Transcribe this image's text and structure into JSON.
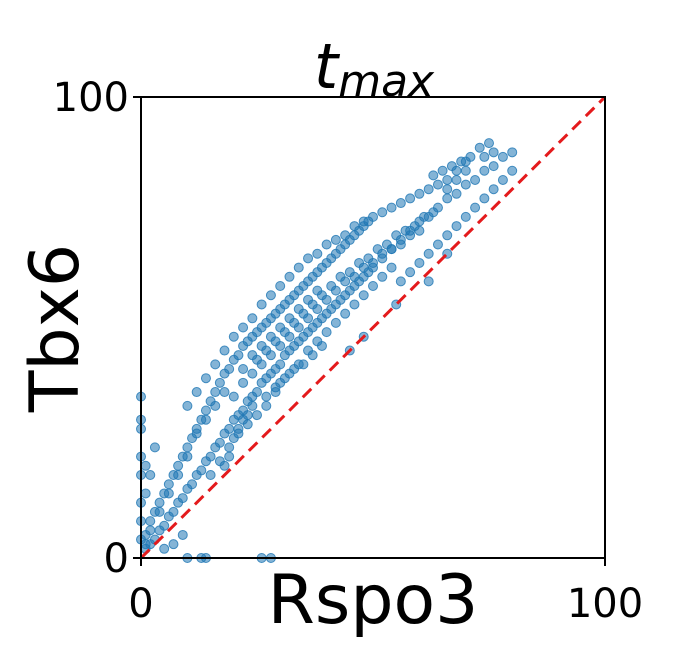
{
  "chart_data": {
    "type": "scatter",
    "title": {
      "main": "t",
      "subscript": "max"
    },
    "xlabel": "Rspo3",
    "ylabel": "Tbx6",
    "xlim": [
      0,
      100
    ],
    "ylim": [
      0,
      100
    ],
    "xticks": [
      "0",
      "100"
    ],
    "yticks": [
      "0",
      "100"
    ],
    "grid": false,
    "legend": "none",
    "point_color": "#1f77b4",
    "point_alpha": 0.55,
    "reference_line": {
      "style": "dashed",
      "color": "#e41a1c",
      "x": [
        0,
        100
      ],
      "y": [
        0,
        100
      ]
    },
    "series": [
      {
        "points": [
          [
            1,
            2
          ],
          [
            1,
            5
          ],
          [
            2,
            3
          ],
          [
            2,
            8
          ],
          [
            3,
            4
          ],
          [
            3,
            10
          ],
          [
            4,
            6
          ],
          [
            4,
            12
          ],
          [
            5,
            7
          ],
          [
            5,
            14
          ],
          [
            6,
            9
          ],
          [
            6,
            16
          ],
          [
            7,
            10
          ],
          [
            7,
            18
          ],
          [
            8,
            12
          ],
          [
            8,
            20
          ],
          [
            9,
            13
          ],
          [
            9,
            22
          ],
          [
            10,
            15
          ],
          [
            10,
            24
          ],
          [
            11,
            16
          ],
          [
            11,
            26
          ],
          [
            12,
            18
          ],
          [
            12,
            28
          ],
          [
            13,
            19
          ],
          [
            13,
            30
          ],
          [
            14,
            21
          ],
          [
            14,
            32
          ],
          [
            15,
            22
          ],
          [
            15,
            34
          ],
          [
            16,
            24
          ],
          [
            16,
            36
          ],
          [
            17,
            25
          ],
          [
            17,
            38
          ],
          [
            18,
            27
          ],
          [
            18,
            40
          ],
          [
            19,
            28
          ],
          [
            19,
            41
          ],
          [
            20,
            30
          ],
          [
            20,
            43
          ],
          [
            21,
            31
          ],
          [
            21,
            44
          ],
          [
            22,
            32
          ],
          [
            22,
            46
          ],
          [
            23,
            34
          ],
          [
            23,
            47
          ],
          [
            24,
            35
          ],
          [
            24,
            48
          ],
          [
            25,
            36
          ],
          [
            25,
            49
          ],
          [
            26,
            38
          ],
          [
            26,
            50
          ],
          [
            27,
            39
          ],
          [
            27,
            51
          ],
          [
            28,
            40
          ],
          [
            28,
            52
          ],
          [
            29,
            41
          ],
          [
            29,
            53
          ],
          [
            30,
            42
          ],
          [
            30,
            54
          ],
          [
            31,
            44
          ],
          [
            31,
            55
          ],
          [
            32,
            45
          ],
          [
            32,
            56
          ],
          [
            33,
            46
          ],
          [
            33,
            57
          ],
          [
            34,
            47
          ],
          [
            34,
            58
          ],
          [
            35,
            48
          ],
          [
            35,
            59
          ],
          [
            36,
            49
          ],
          [
            36,
            60
          ],
          [
            37,
            50
          ],
          [
            37,
            61
          ],
          [
            38,
            51
          ],
          [
            38,
            62
          ],
          [
            39,
            52
          ],
          [
            39,
            63
          ],
          [
            40,
            53
          ],
          [
            40,
            64
          ],
          [
            41,
            54
          ],
          [
            41,
            65
          ],
          [
            42,
            55
          ],
          [
            42,
            66
          ],
          [
            43,
            56
          ],
          [
            43,
            67
          ],
          [
            44,
            57
          ],
          [
            44,
            68
          ],
          [
            45,
            58
          ],
          [
            45,
            69
          ],
          [
            46,
            59
          ],
          [
            46,
            70
          ],
          [
            47,
            60
          ],
          [
            47,
            71
          ],
          [
            48,
            61
          ],
          [
            48,
            72
          ],
          [
            49,
            62
          ],
          [
            49,
            73
          ],
          [
            50,
            63
          ],
          [
            50,
            74
          ],
          [
            52,
            65
          ],
          [
            52,
            75
          ],
          [
            54,
            67
          ],
          [
            54,
            76
          ],
          [
            56,
            69
          ],
          [
            56,
            77
          ],
          [
            58,
            71
          ],
          [
            58,
            78
          ],
          [
            60,
            73
          ],
          [
            60,
            79
          ],
          [
            62,
            74
          ],
          [
            62,
            80
          ],
          [
            64,
            76
          ],
          [
            64,
            81
          ],
          [
            66,
            78
          ],
          [
            66,
            82
          ],
          [
            68,
            79
          ],
          [
            68,
            84
          ],
          [
            70,
            81
          ],
          [
            70,
            86
          ],
          [
            72,
            82
          ],
          [
            74,
            84
          ],
          [
            76,
            85
          ],
          [
            78,
            87
          ],
          [
            80,
            88
          ],
          [
            76,
            88
          ],
          [
            74,
            87
          ],
          [
            70,
            84
          ],
          [
            68,
            82
          ],
          [
            66,
            80
          ],
          [
            25,
            43
          ],
          [
            27,
            45
          ],
          [
            29,
            47
          ],
          [
            31,
            49
          ],
          [
            33,
            51
          ],
          [
            35,
            53
          ],
          [
            37,
            55
          ],
          [
            39,
            57
          ],
          [
            41,
            59
          ],
          [
            43,
            61
          ],
          [
            45,
            62
          ],
          [
            47,
            64
          ],
          [
            49,
            65
          ],
          [
            51,
            67
          ],
          [
            53,
            68
          ],
          [
            55,
            70
          ],
          [
            57,
            71
          ],
          [
            59,
            72
          ],
          [
            61,
            74
          ],
          [
            63,
            75
          ],
          [
            22,
            38
          ],
          [
            24,
            40
          ],
          [
            26,
            42
          ],
          [
            28,
            44
          ],
          [
            30,
            46
          ],
          [
            32,
            48
          ],
          [
            34,
            50
          ],
          [
            36,
            52
          ],
          [
            38,
            54
          ],
          [
            40,
            56
          ],
          [
            42,
            58
          ],
          [
            44,
            60
          ],
          [
            46,
            61
          ],
          [
            48,
            63
          ],
          [
            50,
            64
          ],
          [
            52,
            66
          ],
          [
            54,
            67
          ],
          [
            56,
            68
          ],
          [
            58,
            70
          ],
          [
            60,
            71
          ],
          [
            20,
            35
          ],
          [
            22,
            41
          ],
          [
            24,
            44
          ],
          [
            26,
            46
          ],
          [
            28,
            48
          ],
          [
            30,
            50
          ],
          [
            32,
            52
          ],
          [
            34,
            54
          ],
          [
            36,
            56
          ],
          [
            38,
            58
          ],
          [
            18,
            36
          ],
          [
            16,
            33
          ],
          [
            14,
            30
          ],
          [
            12,
            27
          ],
          [
            10,
            22
          ],
          [
            8,
            18
          ],
          [
            6,
            14
          ],
          [
            4,
            10
          ],
          [
            2,
            6
          ],
          [
            1,
            3
          ],
          [
            0,
            35
          ],
          [
            0,
            30
          ],
          [
            0,
            28
          ],
          [
            0,
            22
          ],
          [
            0,
            18
          ],
          [
            0,
            12
          ],
          [
            0,
            8
          ],
          [
            0,
            4
          ],
          [
            1,
            20
          ],
          [
            1,
            14
          ],
          [
            2,
            18
          ],
          [
            3,
            24
          ],
          [
            9,
            5
          ],
          [
            10,
            0
          ],
          [
            13,
            0
          ],
          [
            14,
            0
          ],
          [
            26,
            0
          ],
          [
            28,
            0
          ],
          [
            5,
            2
          ],
          [
            7,
            3
          ],
          [
            18,
            20
          ],
          [
            20,
            26
          ],
          [
            22,
            30
          ],
          [
            24,
            33
          ],
          [
            19,
            22
          ],
          [
            21,
            28
          ],
          [
            23,
            31
          ],
          [
            30,
            38
          ],
          [
            32,
            40
          ],
          [
            34,
            42
          ],
          [
            36,
            45
          ],
          [
            38,
            47
          ],
          [
            40,
            49
          ],
          [
            42,
            51
          ],
          [
            44,
            53
          ],
          [
            46,
            55
          ],
          [
            48,
            57
          ],
          [
            50,
            59
          ],
          [
            52,
            61
          ],
          [
            54,
            63
          ],
          [
            24,
            52
          ],
          [
            26,
            55
          ],
          [
            28,
            57
          ],
          [
            30,
            59
          ],
          [
            32,
            61
          ],
          [
            34,
            63
          ],
          [
            36,
            65
          ],
          [
            38,
            66
          ],
          [
            40,
            68
          ],
          [
            42,
            69
          ],
          [
            44,
            70
          ],
          [
            46,
            72
          ],
          [
            48,
            73
          ],
          [
            22,
            50
          ],
          [
            20,
            48
          ],
          [
            18,
            45
          ],
          [
            16,
            42
          ],
          [
            14,
            39
          ],
          [
            12,
            36
          ],
          [
            10,
            33
          ],
          [
            56,
            60
          ],
          [
            58,
            62
          ],
          [
            60,
            64
          ],
          [
            62,
            66
          ],
          [
            64,
            68
          ],
          [
            66,
            70
          ],
          [
            68,
            72
          ],
          [
            70,
            74
          ],
          [
            72,
            76
          ],
          [
            74,
            78
          ],
          [
            76,
            80
          ],
          [
            78,
            82
          ],
          [
            80,
            84
          ],
          [
            75,
            90
          ],
          [
            73,
            89
          ],
          [
            71,
            87
          ],
          [
            69,
            86
          ],
          [
            67,
            85
          ],
          [
            65,
            84
          ],
          [
            63,
            83
          ],
          [
            45,
            45
          ],
          [
            48,
            48
          ],
          [
            55,
            55
          ],
          [
            62,
            60
          ],
          [
            66,
            66
          ],
          [
            35,
            42
          ],
          [
            37,
            44
          ],
          [
            39,
            46
          ],
          [
            27,
            35
          ],
          [
            29,
            37
          ],
          [
            31,
            39
          ],
          [
            33,
            41
          ],
          [
            15,
            18
          ],
          [
            17,
            21
          ],
          [
            19,
            24
          ],
          [
            21,
            27
          ],
          [
            23,
            29
          ],
          [
            25,
            31
          ],
          [
            27,
            33
          ],
          [
            29,
            36
          ]
        ]
      }
    ]
  }
}
